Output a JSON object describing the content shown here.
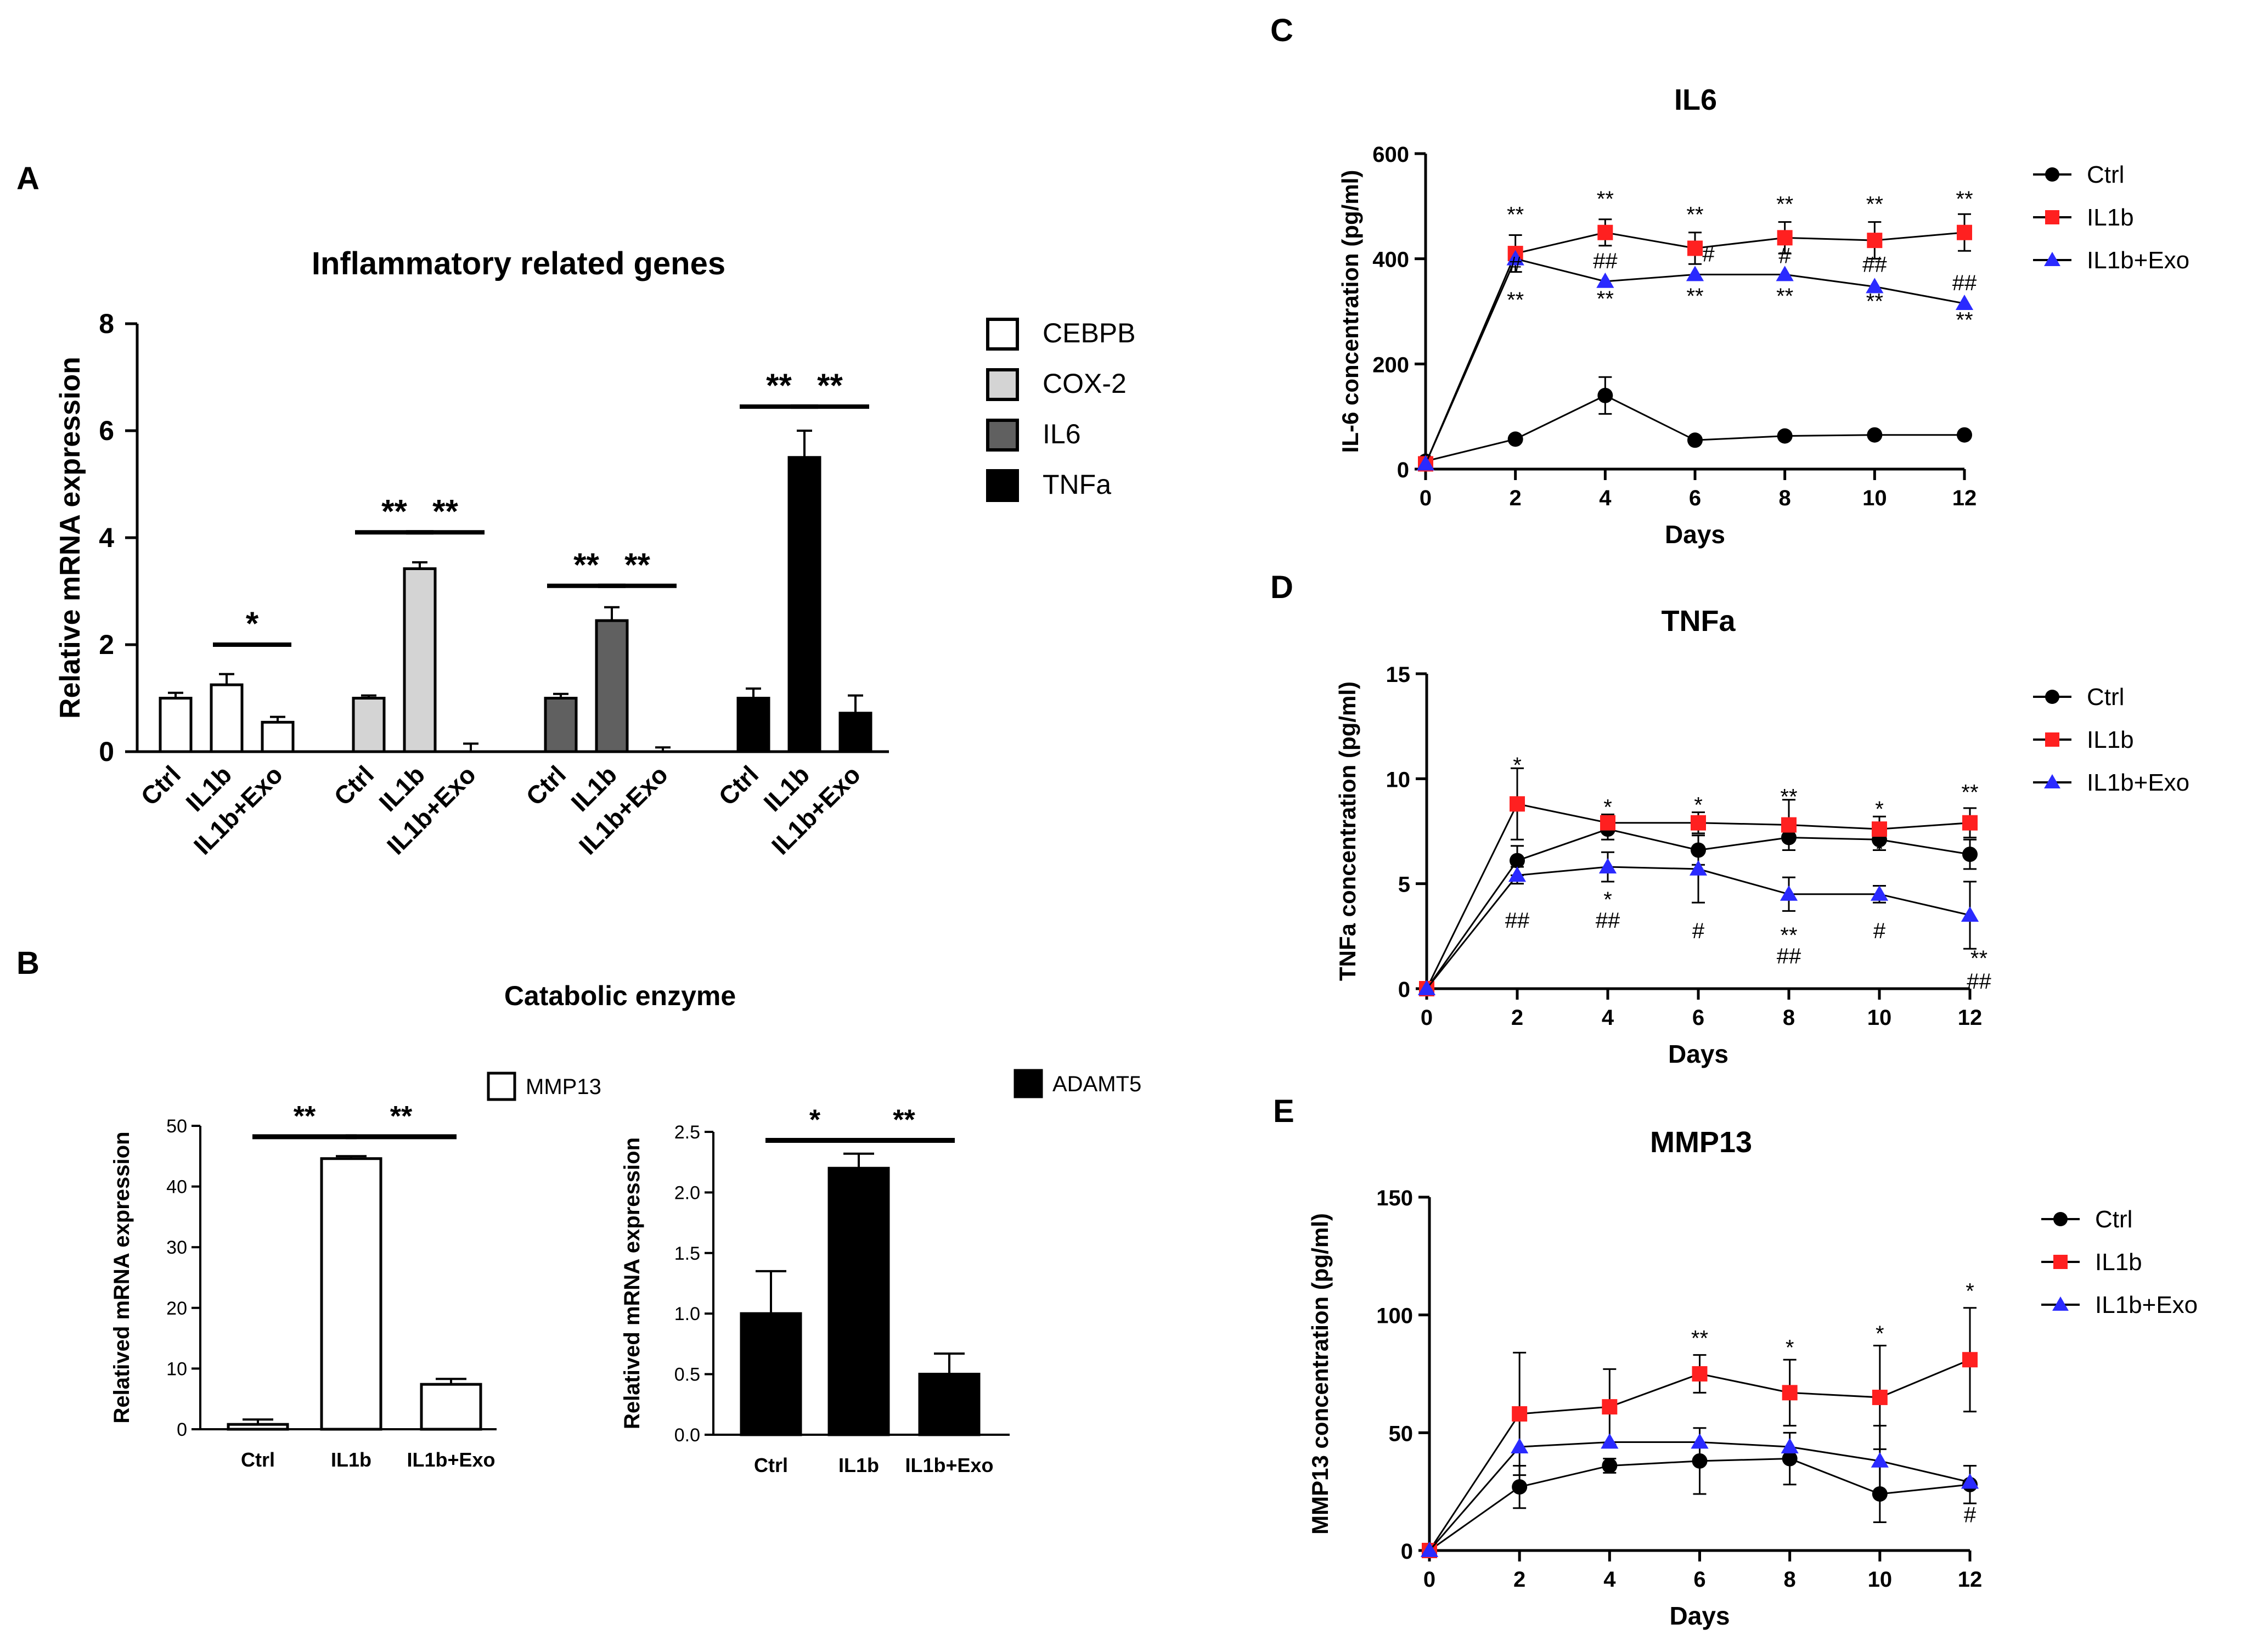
{
  "panel_labels": {
    "a": "A",
    "b": "B",
    "c": "C",
    "d": "D",
    "e": "E"
  },
  "colors": {
    "ctrl": "#000000",
    "il1b": "#ff2020",
    "exo": "#2a2aff",
    "white": "#ffffff",
    "light_gray": "#d4d4d4",
    "dark_gray": "#606060",
    "black": "#000000"
  },
  "chart_data": [
    {
      "id": "A",
      "type": "bar",
      "title": "Inflammatory related genes",
      "ylabel": "Relative mRNA expression",
      "ylim": [
        0,
        8
      ],
      "yticks": [
        "0",
        "2",
        "4",
        "6",
        "8"
      ],
      "categories": [
        "Ctrl",
        "IL1b",
        "IL1b+Exo"
      ],
      "legend": {
        "position": "right"
      },
      "groups": [
        {
          "name": "CEBPB",
          "color": "#ffffff",
          "values": [
            1.0,
            1.25,
            0.55
          ],
          "errors": [
            0.1,
            0.2,
            0.1
          ],
          "significance": [
            {
              "from": 1,
              "to": 2,
              "label": "*",
              "height": 2.0
            }
          ]
        },
        {
          "name": "COX-2",
          "color": "#d4d4d4",
          "values": [
            1.0,
            3.42,
            0.0
          ],
          "errors": [
            0.05,
            0.12,
            0.15
          ],
          "significance": [
            {
              "from": 0,
              "to": 1,
              "label": "**",
              "height": 4.1
            },
            {
              "from": 1,
              "to": 2,
              "label": "**",
              "height": 4.1
            }
          ]
        },
        {
          "name": "IL6",
          "color": "#606060",
          "values": [
            1.0,
            2.45,
            0.0
          ],
          "errors": [
            0.08,
            0.25,
            0.08
          ],
          "significance": [
            {
              "from": 0,
              "to": 1,
              "label": "**",
              "height": 3.1
            },
            {
              "from": 1,
              "to": 2,
              "label": "**",
              "height": 3.1
            }
          ]
        },
        {
          "name": "TNFa",
          "color": "#000000",
          "values": [
            1.0,
            5.5,
            0.72
          ],
          "errors": [
            0.18,
            0.5,
            0.33
          ],
          "significance": [
            {
              "from": 0,
              "to": 1,
              "label": "**",
              "height": 6.45
            },
            {
              "from": 1,
              "to": 2,
              "label": "**",
              "height": 6.45
            }
          ]
        }
      ]
    },
    {
      "id": "B",
      "type": "bar",
      "title": "Catabolic enzyme",
      "subplots": [
        {
          "legend": "MMP13",
          "color": "#ffffff",
          "ylabel": "Relatived mRNA expression",
          "ylim": [
            0,
            50
          ],
          "yticks": [
            "0",
            "10",
            "20",
            "30",
            "40",
            "50"
          ],
          "categories": [
            "Ctrl",
            "IL1b",
            "IL1b+Exo"
          ],
          "values": [
            0.8,
            44.6,
            7.4
          ],
          "errors": [
            0.8,
            0.4,
            0.9
          ],
          "significance": [
            {
              "from": 0,
              "to": 1,
              "label": "**",
              "height": 48.2
            },
            {
              "from": 1,
              "to": 2,
              "label": "**",
              "height": 48.2
            }
          ]
        },
        {
          "legend": "ADAMT5",
          "color": "#000000",
          "ylabel": "Relatived mRNA expression",
          "ylim": [
            0,
            2.5
          ],
          "yticks": [
            "0.0",
            "0.5",
            "1.0",
            "1.5",
            "2.0",
            "2.5"
          ],
          "categories": [
            "Ctrl",
            "IL1b",
            "IL1b+Exo"
          ],
          "values": [
            1.0,
            2.2,
            0.5
          ],
          "errors": [
            0.35,
            0.12,
            0.17
          ],
          "significance": [
            {
              "from": 0,
              "to": 1,
              "label": "*",
              "height": 2.43
            },
            {
              "from": 1,
              "to": 2,
              "label": "**",
              "height": 2.43
            }
          ]
        }
      ]
    },
    {
      "id": "C",
      "type": "line",
      "title": "IL6",
      "xlabel": "Days",
      "ylabel": "IL-6 concentration (pg/ml)",
      "x": [
        0,
        2,
        4,
        6,
        8,
        10,
        12
      ],
      "xticks": [
        "0",
        "2",
        "4",
        "6",
        "8",
        "10",
        "12"
      ],
      "ylim": [
        0,
        600
      ],
      "yticks": [
        "0",
        "200",
        "400",
        "600"
      ],
      "legend": {
        "position": "right"
      },
      "series": [
        {
          "name": "Ctrl",
          "marker": "circle",
          "color": "#000000",
          "values": [
            15,
            57,
            140,
            55,
            63,
            65,
            65
          ],
          "errors": [
            0,
            0,
            35,
            0,
            0,
            0,
            0
          ]
        },
        {
          "name": "IL1b",
          "marker": "square",
          "color": "#ff2020",
          "values": [
            10,
            410,
            450,
            420,
            440,
            435,
            450
          ],
          "errors": [
            0,
            35,
            25,
            30,
            30,
            35,
            35
          ]
        },
        {
          "name": "IL1b+Exo",
          "marker": "triangle",
          "color": "#2a2aff",
          "values": [
            10,
            400,
            357,
            370,
            370,
            347,
            315
          ],
          "errors": [
            0,
            0,
            0,
            0,
            0,
            0,
            0
          ]
        }
      ],
      "annotations": [
        {
          "x": 2,
          "y": 470,
          "text": "**",
          "color": "#000000"
        },
        {
          "x": 4,
          "y": 500,
          "text": "**",
          "color": "#000000"
        },
        {
          "x": 6,
          "y": 470,
          "text": "**",
          "color": "#000000"
        },
        {
          "x": 8,
          "y": 490,
          "text": "**",
          "color": "#000000"
        },
        {
          "x": 10,
          "y": 490,
          "text": "**",
          "color": "#000000"
        },
        {
          "x": 12,
          "y": 500,
          "text": "**",
          "color": "#000000"
        },
        {
          "x": 2,
          "y": 375,
          "text": "#",
          "color": "#000000"
        },
        {
          "x": 4,
          "y": 382,
          "text": "##",
          "color": "#000000"
        },
        {
          "x": 6.3,
          "y": 395,
          "text": "#",
          "color": "#000000"
        },
        {
          "x": 8,
          "y": 392,
          "text": "#",
          "color": "#000000"
        },
        {
          "x": 10,
          "y": 375,
          "text": "##",
          "color": "#000000"
        },
        {
          "x": 12,
          "y": 340,
          "text": "##",
          "color": "#000000"
        },
        {
          "x": 2,
          "y": 308,
          "text": "**",
          "color": "#000000"
        },
        {
          "x": 4,
          "y": 310,
          "text": "**",
          "color": "#000000"
        },
        {
          "x": 6,
          "y": 315,
          "text": "**",
          "color": "#000000"
        },
        {
          "x": 8,
          "y": 315,
          "text": "**",
          "color": "#000000"
        },
        {
          "x": 10,
          "y": 305,
          "text": "**",
          "color": "#000000"
        },
        {
          "x": 12,
          "y": 270,
          "text": "**",
          "color": "#000000"
        }
      ]
    },
    {
      "id": "D",
      "type": "line",
      "title": "TNFa",
      "xlabel": "Days",
      "ylabel": "TNFa concentration  (pg/ml)",
      "x": [
        0,
        2,
        4,
        6,
        8,
        10,
        12
      ],
      "xticks": [
        "0",
        "2",
        "4",
        "6",
        "8",
        "10",
        "12"
      ],
      "ylim": [
        0,
        15
      ],
      "yticks": [
        "0",
        "5",
        "10",
        "15"
      ],
      "legend": {
        "position": "right"
      },
      "series": [
        {
          "name": "Ctrl",
          "marker": "circle",
          "color": "#000000",
          "values": [
            0,
            6.1,
            7.6,
            6.6,
            7.2,
            7.1,
            6.4
          ],
          "errors": [
            0,
            0.7,
            0.5,
            0.7,
            0.6,
            0.5,
            0.7
          ]
        },
        {
          "name": "IL1b",
          "marker": "square",
          "color": "#ff2020",
          "values": [
            0,
            8.8,
            7.9,
            7.9,
            7.8,
            7.6,
            7.9
          ],
          "errors": [
            0,
            1.7,
            0.4,
            0.5,
            1.2,
            0.6,
            0.7
          ]
        },
        {
          "name": "IL1b+Exo",
          "marker": "triangle",
          "color": "#2a2aff",
          "values": [
            0,
            5.4,
            5.8,
            5.7,
            4.5,
            4.5,
            3.5
          ],
          "errors": [
            0,
            0.4,
            0.7,
            1.6,
            0.8,
            0.4,
            1.6
          ]
        }
      ],
      "annotations": [
        {
          "x": 2,
          "y": 10.3,
          "text": "*",
          "color": "#000000"
        },
        {
          "x": 4,
          "y": 8.3,
          "text": "*",
          "color": "#000000"
        },
        {
          "x": 6,
          "y": 8.4,
          "text": "*",
          "color": "#000000"
        },
        {
          "x": 8,
          "y": 8.8,
          "text": "**",
          "color": "#000000"
        },
        {
          "x": 10,
          "y": 8.2,
          "text": "*",
          "color": "#000000"
        },
        {
          "x": 12,
          "y": 9.0,
          "text": "**",
          "color": "#000000"
        },
        {
          "x": 10,
          "y": 6.3,
          "text": "*",
          "color": "#000000"
        },
        {
          "x": 2,
          "y": 2.9,
          "text": "##",
          "color": "#1a1a6e"
        },
        {
          "x": 4,
          "y": 3.9,
          "text": "*",
          "color": "#1a1a6e"
        },
        {
          "x": 4,
          "y": 2.9,
          "text": "##",
          "color": "#1a1a6e"
        },
        {
          "x": 6,
          "y": 2.4,
          "text": "#",
          "color": "#1a1a6e"
        },
        {
          "x": 8,
          "y": 2.2,
          "text": "**",
          "color": "#1a1a6e"
        },
        {
          "x": 8,
          "y": 1.2,
          "text": "##",
          "color": "#1a1a6e"
        },
        {
          "x": 10,
          "y": 2.4,
          "text": "#",
          "color": "#1a1a6e"
        },
        {
          "x": 12.2,
          "y": 1.1,
          "text": "**",
          "color": "#1a1a6e"
        },
        {
          "x": 12.2,
          "y": 0.0,
          "text": "##",
          "color": "#1a1a6e"
        }
      ]
    },
    {
      "id": "E",
      "type": "line",
      "title": "MMP13",
      "xlabel": "Days",
      "ylabel": "MMP13 concentration (pg/ml)",
      "x": [
        0,
        2,
        4,
        6,
        8,
        10,
        12
      ],
      "xticks": [
        "0",
        "2",
        "4",
        "6",
        "8",
        "10",
        "12"
      ],
      "ylim": [
        0,
        150
      ],
      "yticks": [
        "0",
        "50",
        "100",
        "150"
      ],
      "legend": {
        "position": "right"
      },
      "series": [
        {
          "name": "Ctrl",
          "marker": "circle",
          "color": "#000000",
          "values": [
            0,
            27,
            36,
            38,
            39,
            24,
            28
          ],
          "errors": [
            0,
            9,
            3,
            14,
            11,
            12,
            8
          ]
        },
        {
          "name": "IL1b",
          "marker": "square",
          "color": "#ff2020",
          "values": [
            0,
            58,
            61,
            75,
            67,
            65,
            81
          ],
          "errors": [
            0,
            26,
            16,
            8,
            14,
            22,
            22
          ]
        },
        {
          "name": "IL1b+Exo",
          "marker": "triangle",
          "color": "#2a2aff",
          "values": [
            0,
            44,
            46,
            46,
            44,
            38,
            29
          ],
          "errors": [
            0,
            0,
            0,
            0,
            0,
            15,
            0
          ]
        }
      ],
      "annotations": [
        {
          "x": 6,
          "y": 87,
          "text": "**",
          "color": "#000000"
        },
        {
          "x": 8,
          "y": 83,
          "text": "*",
          "color": "#000000"
        },
        {
          "x": 10,
          "y": 89,
          "text": "*",
          "color": "#000000"
        },
        {
          "x": 12,
          "y": 107,
          "text": "*",
          "color": "#000000"
        },
        {
          "x": 12,
          "y": 12,
          "text": "#",
          "color": "#000000"
        }
      ]
    }
  ]
}
